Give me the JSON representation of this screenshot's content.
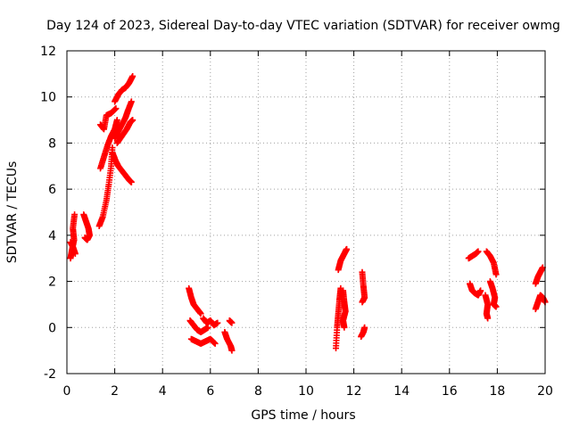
{
  "chart_data": {
    "type": "scatter",
    "title": "Day 124 of 2023, Sidereal Day-to-day VTEC variation (SDTVAR) for receiver owmg",
    "xlabel": "GPS time / hours",
    "ylabel": "SDTVAR / TECUs",
    "xlim": [
      0,
      20
    ],
    "ylim": [
      -2,
      12
    ],
    "xticks": [
      0,
      2,
      4,
      6,
      8,
      10,
      12,
      14,
      16,
      18,
      20
    ],
    "yticks": [
      -2,
      0,
      2,
      4,
      6,
      8,
      10,
      12
    ],
    "xtick_labels": [
      "0",
      "2",
      "4",
      "6",
      "8",
      "10",
      "12",
      "14",
      "16",
      "18",
      "20"
    ],
    "ytick_labels": [
      "-2",
      "0",
      "2",
      "4",
      "6",
      "8",
      "10",
      "12"
    ],
    "grid": true,
    "marker": "plus",
    "color": "#ff0000",
    "series": [
      {
        "name": "SDTVAR",
        "segments": [
          {
            "points": [
              [
                0.15,
                3.0
              ],
              [
                0.22,
                3.4
              ],
              [
                0.3,
                3.8
              ],
              [
                0.25,
                4.3
              ],
              [
                0.32,
                4.9
              ]
            ]
          },
          {
            "points": [
              [
                0.15,
                3.7
              ],
              [
                0.25,
                3.5
              ],
              [
                0.35,
                3.2
              ]
            ]
          },
          {
            "points": [
              [
                0.7,
                4.9
              ],
              [
                0.8,
                4.6
              ],
              [
                0.9,
                4.3
              ],
              [
                0.95,
                4.0
              ],
              [
                0.85,
                3.8
              ],
              [
                0.75,
                3.9
              ]
            ]
          },
          {
            "points": [
              [
                1.35,
                4.4
              ],
              [
                1.5,
                4.8
              ],
              [
                1.65,
                5.5
              ],
              [
                1.75,
                6.2
              ],
              [
                1.85,
                7.0
              ],
              [
                1.9,
                7.8
              ]
            ]
          },
          {
            "points": [
              [
                1.4,
                6.9
              ],
              [
                1.55,
                7.4
              ],
              [
                1.7,
                7.9
              ],
              [
                1.85,
                8.3
              ],
              [
                2.0,
                8.6
              ],
              [
                2.1,
                9.0
              ]
            ]
          },
          {
            "points": [
              [
                1.4,
                8.8
              ],
              [
                1.55,
                8.6
              ],
              [
                1.65,
                9.2
              ],
              [
                1.85,
                9.3
              ],
              [
                2.05,
                9.5
              ]
            ]
          },
          {
            "points": [
              [
                1.9,
                7.6
              ],
              [
                2.05,
                7.2
              ],
              [
                2.15,
                7.0
              ],
              [
                2.3,
                6.8
              ],
              [
                2.45,
                6.6
              ],
              [
                2.6,
                6.4
              ],
              [
                2.7,
                6.3
              ]
            ]
          },
          {
            "points": [
              [
                2.0,
                9.8
              ],
              [
                2.15,
                10.1
              ],
              [
                2.3,
                10.3
              ],
              [
                2.45,
                10.4
              ],
              [
                2.6,
                10.6
              ],
              [
                2.75,
                10.9
              ]
            ]
          },
          {
            "points": [
              [
                2.0,
                8.2
              ],
              [
                2.15,
                8.5
              ],
              [
                2.3,
                8.8
              ],
              [
                2.45,
                9.1
              ],
              [
                2.55,
                9.4
              ],
              [
                2.7,
                9.8
              ]
            ]
          },
          {
            "points": [
              [
                2.1,
                8.0
              ],
              [
                2.3,
                8.3
              ],
              [
                2.5,
                8.6
              ],
              [
                2.65,
                8.9
              ],
              [
                2.75,
                9.0
              ]
            ]
          },
          {
            "points": [
              [
                5.1,
                1.7
              ],
              [
                5.2,
                1.3
              ],
              [
                5.3,
                1.0
              ],
              [
                5.45,
                0.8
              ],
              [
                5.6,
                0.6
              ]
            ]
          },
          {
            "points": [
              [
                5.15,
                0.3
              ],
              [
                5.3,
                0.1
              ],
              [
                5.45,
                -0.1
              ],
              [
                5.6,
                -0.2
              ],
              [
                5.75,
                -0.1
              ],
              [
                5.9,
                0.0
              ]
            ]
          },
          {
            "points": [
              [
                5.2,
                -0.5
              ],
              [
                5.4,
                -0.6
              ],
              [
                5.6,
                -0.7
              ],
              [
                5.8,
                -0.6
              ],
              [
                6.0,
                -0.5
              ],
              [
                6.2,
                -0.7
              ]
            ]
          },
          {
            "points": [
              [
                5.7,
                0.4
              ],
              [
                5.85,
                0.2
              ],
              [
                6.0,
                0.3
              ],
              [
                6.15,
                0.1
              ],
              [
                6.3,
                0.2
              ]
            ]
          },
          {
            "points": [
              [
                6.6,
                -0.2
              ],
              [
                6.7,
                -0.5
              ],
              [
                6.85,
                -0.8
              ],
              [
                6.9,
                -1.0
              ]
            ]
          },
          {
            "points": [
              [
                6.8,
                0.3
              ],
              [
                6.9,
                0.2
              ]
            ]
          },
          {
            "points": [
              [
                11.25,
                -0.9
              ],
              [
                11.3,
                0.0
              ],
              [
                11.35,
                0.6
              ],
              [
                11.4,
                1.2
              ],
              [
                11.45,
                1.7
              ]
            ]
          },
          {
            "points": [
              [
                11.35,
                2.5
              ],
              [
                11.45,
                2.9
              ],
              [
                11.55,
                3.1
              ],
              [
                11.65,
                3.3
              ],
              [
                11.7,
                3.4
              ]
            ]
          },
          {
            "points": [
              [
                11.55,
                1.6
              ],
              [
                11.6,
                1.1
              ],
              [
                11.65,
                0.7
              ],
              [
                11.55,
                0.3
              ],
              [
                11.6,
                0.0
              ]
            ]
          },
          {
            "points": [
              [
                12.35,
                2.4
              ],
              [
                12.4,
                1.8
              ],
              [
                12.45,
                1.3
              ],
              [
                12.35,
                1.1
              ]
            ]
          },
          {
            "points": [
              [
                12.3,
                -0.4
              ],
              [
                12.4,
                -0.2
              ],
              [
                12.45,
                0.0
              ]
            ]
          },
          {
            "points": [
              [
                16.8,
                3.0
              ],
              [
                16.95,
                3.1
              ],
              [
                17.1,
                3.2
              ],
              [
                17.2,
                3.3
              ]
            ]
          },
          {
            "points": [
              [
                16.85,
                1.9
              ],
              [
                16.95,
                1.6
              ],
              [
                17.05,
                1.5
              ],
              [
                17.2,
                1.4
              ],
              [
                17.3,
                1.6
              ]
            ]
          },
          {
            "points": [
              [
                17.55,
                3.3
              ],
              [
                17.7,
                3.1
              ],
              [
                17.85,
                2.8
              ],
              [
                17.95,
                2.3
              ]
            ]
          },
          {
            "points": [
              [
                17.5,
                1.4
              ],
              [
                17.6,
                1.0
              ],
              [
                17.55,
                0.6
              ],
              [
                17.6,
                0.4
              ]
            ]
          },
          {
            "points": [
              [
                17.7,
                2.0
              ],
              [
                17.8,
                1.7
              ],
              [
                17.9,
                1.3
              ],
              [
                17.85,
                1.0
              ],
              [
                17.95,
                0.9
              ]
            ]
          },
          {
            "points": [
              [
                19.6,
                1.9
              ],
              [
                19.7,
                2.2
              ],
              [
                19.8,
                2.4
              ],
              [
                19.9,
                2.6
              ]
            ]
          },
          {
            "points": [
              [
                19.6,
                0.8
              ],
              [
                19.7,
                1.1
              ],
              [
                19.8,
                1.4
              ],
              [
                19.9,
                1.3
              ],
              [
                20.0,
                1.1
              ]
            ]
          }
        ]
      }
    ]
  }
}
